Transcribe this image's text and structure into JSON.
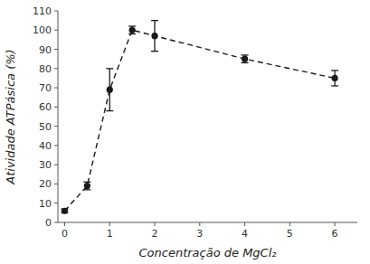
{
  "chart_data": {
    "type": "line",
    "x": [
      0,
      0.5,
      1,
      1.5,
      2,
      4,
      6
    ],
    "values": [
      6,
      19,
      69,
      100,
      97,
      85,
      75
    ],
    "errors": [
      1,
      2,
      11,
      2,
      8,
      2,
      4
    ],
    "xlabel": "Concentração de MgCl₂",
    "ylabel": "Atividade ATPásica (%)",
    "xlim": [
      -0.15,
      6.5
    ],
    "ylim": [
      0,
      110
    ],
    "xticks": [
      0,
      1,
      2,
      3,
      4,
      5,
      6
    ],
    "yticks": [
      0,
      10,
      20,
      30,
      40,
      50,
      60,
      70,
      80,
      90,
      100,
      110
    ],
    "color": "#1a1a1a",
    "marker": "circle",
    "line_style": "dashed",
    "grid": false
  }
}
